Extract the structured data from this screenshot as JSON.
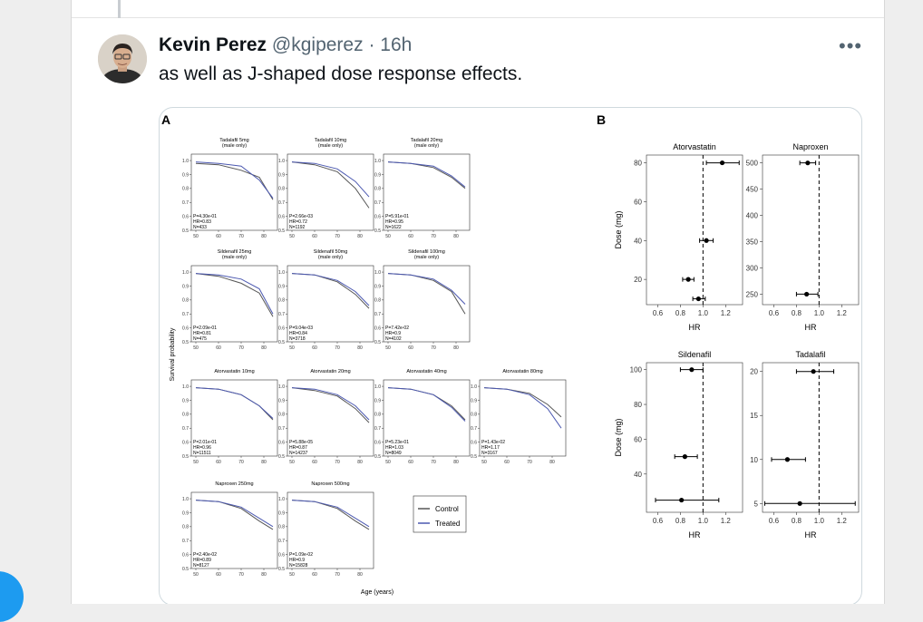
{
  "tweet": {
    "author_name": "Kevin Perez",
    "handle": "@kgiperez",
    "separator": "·",
    "time": "16h",
    "more_label": "•••",
    "text": "as well as J-shaped dose response effects."
  },
  "figure": {
    "panel_a_label": "A",
    "panel_b_label": "B",
    "y_axis_label": "Survival probability",
    "x_axis_label": "Age (years)",
    "legend": [
      "Control",
      "Treated"
    ],
    "colors": {
      "control": "#555555",
      "treated": "#4b58b0"
    }
  },
  "chart_data": [
    {
      "type": "line",
      "panel": "A",
      "x_ticks": [
        50,
        60,
        70,
        80
      ],
      "y_ticks": [
        1.0,
        0.9,
        0.8,
        0.7,
        0.6,
        0.5
      ],
      "xlim": [
        48,
        86
      ],
      "ylim": [
        0.5,
        1.02
      ],
      "subplots": [
        {
          "title": "Tadalafil 5mg",
          "subtitle": "(male only)",
          "p": "P=4.30e-01",
          "hr": "HR=0.83",
          "n": "N=433",
          "row": 0,
          "col": 0,
          "control": [
            [
              50,
              0.98
            ],
            [
              60,
              0.97
            ],
            [
              70,
              0.93
            ],
            [
              78,
              0.88
            ],
            [
              84,
              0.72
            ]
          ],
          "treated": [
            [
              50,
              0.99
            ],
            [
              60,
              0.98
            ],
            [
              70,
              0.96
            ],
            [
              78,
              0.86
            ],
            [
              84,
              0.73
            ]
          ]
        },
        {
          "title": "Tadalafil 10mg",
          "subtitle": "(male only)",
          "p": "P=2.66e-03",
          "hr": "HR=0.72",
          "n": "N=1192",
          "row": 0,
          "col": 1,
          "control": [
            [
              50,
              0.99
            ],
            [
              60,
              0.97
            ],
            [
              70,
              0.92
            ],
            [
              78,
              0.8
            ],
            [
              84,
              0.66
            ]
          ],
          "treated": [
            [
              50,
              0.99
            ],
            [
              60,
              0.98
            ],
            [
              70,
              0.94
            ],
            [
              78,
              0.85
            ],
            [
              84,
              0.74
            ]
          ]
        },
        {
          "title": "Tadalafil 20mg",
          "subtitle": "(male only)",
          "p": "P=5.91e-01",
          "hr": "HR=0.95",
          "n": "N=1622",
          "row": 0,
          "col": 2,
          "control": [
            [
              50,
              0.99
            ],
            [
              60,
              0.98
            ],
            [
              70,
              0.95
            ],
            [
              78,
              0.88
            ],
            [
              84,
              0.8
            ]
          ],
          "treated": [
            [
              50,
              0.99
            ],
            [
              60,
              0.98
            ],
            [
              70,
              0.96
            ],
            [
              78,
              0.89
            ],
            [
              84,
              0.81
            ]
          ]
        },
        {
          "title": "Sildenafil 25mg",
          "subtitle": "(male only)",
          "p": "P=2.09e-01",
          "hr": "HR=0.81",
          "n": "N=475",
          "row": 1,
          "col": 0,
          "control": [
            [
              50,
              0.99
            ],
            [
              60,
              0.97
            ],
            [
              70,
              0.92
            ],
            [
              78,
              0.85
            ],
            [
              84,
              0.68
            ]
          ],
          "treated": [
            [
              50,
              0.99
            ],
            [
              60,
              0.98
            ],
            [
              70,
              0.95
            ],
            [
              78,
              0.88
            ],
            [
              84,
              0.7
            ]
          ]
        },
        {
          "title": "Sildenafil 50mg",
          "subtitle": "(male only)",
          "p": "P=9.04e-03",
          "hr": "HR=0.84",
          "n": "N=3718",
          "row": 1,
          "col": 1,
          "control": [
            [
              50,
              0.99
            ],
            [
              60,
              0.98
            ],
            [
              70,
              0.93
            ],
            [
              78,
              0.84
            ],
            [
              84,
              0.74
            ]
          ],
          "treated": [
            [
              50,
              0.99
            ],
            [
              60,
              0.98
            ],
            [
              70,
              0.94
            ],
            [
              78,
              0.86
            ],
            [
              84,
              0.76
            ]
          ]
        },
        {
          "title": "Sildenafil 100mg",
          "subtitle": "(male only)",
          "p": "P=7.42e-02",
          "hr": "HR=0.9",
          "n": "N=4102",
          "row": 1,
          "col": 2,
          "control": [
            [
              50,
              0.99
            ],
            [
              60,
              0.98
            ],
            [
              70,
              0.94
            ],
            [
              78,
              0.86
            ],
            [
              84,
              0.7
            ]
          ],
          "treated": [
            [
              50,
              0.99
            ],
            [
              60,
              0.98
            ],
            [
              70,
              0.95
            ],
            [
              78,
              0.87
            ],
            [
              84,
              0.77
            ]
          ]
        },
        {
          "title": "Atorvastatin 10mg",
          "subtitle": "",
          "p": "P=2.01e-01",
          "hr": "HR=0.96",
          "n": "N=11511",
          "row": 2,
          "col": 0,
          "control": [
            [
              50,
              0.99
            ],
            [
              60,
              0.98
            ],
            [
              70,
              0.94
            ],
            [
              78,
              0.86
            ],
            [
              84,
              0.76
            ]
          ],
          "treated": [
            [
              50,
              0.99
            ],
            [
              60,
              0.98
            ],
            [
              70,
              0.94
            ],
            [
              78,
              0.86
            ],
            [
              84,
              0.77
            ]
          ]
        },
        {
          "title": "Atorvastatin 20mg",
          "subtitle": "",
          "p": "P=5.88e-05",
          "hr": "HR=0.87",
          "n": "N=14237",
          "row": 2,
          "col": 1,
          "control": [
            [
              50,
              0.99
            ],
            [
              60,
              0.97
            ],
            [
              70,
              0.93
            ],
            [
              78,
              0.84
            ],
            [
              84,
              0.74
            ]
          ],
          "treated": [
            [
              50,
              0.99
            ],
            [
              60,
              0.98
            ],
            [
              70,
              0.94
            ],
            [
              78,
              0.86
            ],
            [
              84,
              0.76
            ]
          ]
        },
        {
          "title": "Atorvastatin 40mg",
          "subtitle": "",
          "p": "P=5.23e-01",
          "hr": "HR=1.03",
          "n": "N=8049",
          "row": 2,
          "col": 2,
          "control": [
            [
              50,
              0.99
            ],
            [
              60,
              0.98
            ],
            [
              70,
              0.94
            ],
            [
              78,
              0.86
            ],
            [
              84,
              0.76
            ]
          ],
          "treated": [
            [
              50,
              0.99
            ],
            [
              60,
              0.98
            ],
            [
              70,
              0.94
            ],
            [
              78,
              0.85
            ],
            [
              84,
              0.75
            ]
          ]
        },
        {
          "title": "Atorvastatin 80mg",
          "subtitle": "",
          "p": "P=1.43e-02",
          "hr": "HR=1.17",
          "n": "N=3167",
          "row": 2,
          "col": 3,
          "control": [
            [
              50,
              0.99
            ],
            [
              60,
              0.98
            ],
            [
              70,
              0.95
            ],
            [
              78,
              0.87
            ],
            [
              84,
              0.78
            ]
          ],
          "treated": [
            [
              50,
              0.99
            ],
            [
              60,
              0.98
            ],
            [
              70,
              0.94
            ],
            [
              78,
              0.84
            ],
            [
              84,
              0.7
            ]
          ]
        },
        {
          "title": "Naproxen 250mg",
          "subtitle": "",
          "p": "P=2.40e-02",
          "hr": "HR=0.89",
          "n": "N=8127",
          "row": 3,
          "col": 0,
          "control": [
            [
              50,
              0.99
            ],
            [
              60,
              0.98
            ],
            [
              70,
              0.93
            ],
            [
              78,
              0.84
            ],
            [
              84,
              0.78
            ]
          ],
          "treated": [
            [
              50,
              0.99
            ],
            [
              60,
              0.98
            ],
            [
              70,
              0.94
            ],
            [
              78,
              0.86
            ],
            [
              84,
              0.8
            ]
          ]
        },
        {
          "title": "Naproxen 500mg",
          "subtitle": "",
          "p": "P=1.09e-02",
          "hr": "HR=0.9",
          "n": "N=15828",
          "row": 3,
          "col": 1,
          "control": [
            [
              50,
              0.99
            ],
            [
              60,
              0.98
            ],
            [
              70,
              0.93
            ],
            [
              78,
              0.84
            ],
            [
              84,
              0.78
            ]
          ],
          "treated": [
            [
              50,
              0.99
            ],
            [
              60,
              0.98
            ],
            [
              70,
              0.94
            ],
            [
              78,
              0.86
            ],
            [
              84,
              0.8
            ]
          ]
        }
      ]
    },
    {
      "type": "scatter",
      "panel": "B",
      "xlabel": "HR",
      "ylabel": "Dose (mg)",
      "x_ticks": [
        0.6,
        0.8,
        1.0,
        1.2
      ],
      "xlim": [
        0.5,
        1.35
      ],
      "reference_line": 1.0,
      "subplots": [
        {
          "title": "Atorvastatin",
          "row": 0,
          "col": 0,
          "y_ticks": [
            20,
            40,
            60,
            80
          ],
          "ylim": [
            7,
            84
          ],
          "points": [
            {
              "dose": 80,
              "hr": 1.17,
              "lo": 1.03,
              "hi": 1.32
            },
            {
              "dose": 40,
              "hr": 1.03,
              "lo": 0.97,
              "hi": 1.09
            },
            {
              "dose": 20,
              "hr": 0.87,
              "lo": 0.82,
              "hi": 0.92
            },
            {
              "dose": 10,
              "hr": 0.96,
              "lo": 0.91,
              "hi": 1.02
            }
          ]
        },
        {
          "title": "Naproxen",
          "row": 0,
          "col": 1,
          "y_ticks": [
            250,
            300,
            350,
            400,
            450,
            500
          ],
          "ylim": [
            230,
            515
          ],
          "points": [
            {
              "dose": 500,
              "hr": 0.9,
              "lo": 0.83,
              "hi": 0.97
            },
            {
              "dose": 250,
              "hr": 0.89,
              "lo": 0.8,
              "hi": 0.99
            }
          ]
        },
        {
          "title": "Sildenafil",
          "row": 1,
          "col": 0,
          "y_ticks": [
            40,
            60,
            80,
            100
          ],
          "ylim": [
            18,
            104
          ],
          "points": [
            {
              "dose": 100,
              "hr": 0.9,
              "lo": 0.8,
              "hi": 1.0
            },
            {
              "dose": 50,
              "hr": 0.84,
              "lo": 0.75,
              "hi": 0.95
            },
            {
              "dose": 25,
              "hr": 0.81,
              "lo": 0.58,
              "hi": 1.14
            }
          ]
        },
        {
          "title": "Tadalafil",
          "row": 1,
          "col": 1,
          "y_ticks": [
            5,
            10,
            15,
            20
          ],
          "ylim": [
            4,
            21
          ],
          "points": [
            {
              "dose": 20,
              "hr": 0.95,
              "lo": 0.8,
              "hi": 1.13
            },
            {
              "dose": 10,
              "hr": 0.72,
              "lo": 0.58,
              "hi": 0.88
            },
            {
              "dose": 5,
              "hr": 0.83,
              "lo": 0.52,
              "hi": 1.32
            }
          ]
        }
      ]
    }
  ]
}
